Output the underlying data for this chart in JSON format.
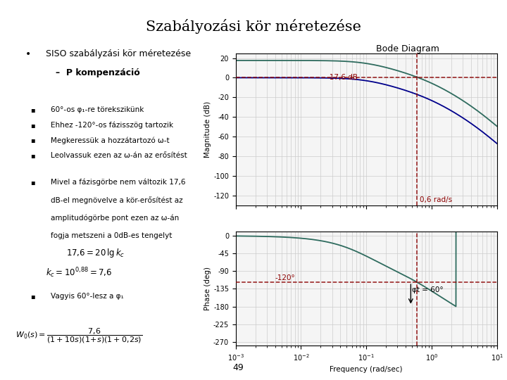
{
  "title": "Szabályozási kör méretezése",
  "bullet1": "SISO szabályzási kör méretezése",
  "dash1": "–  P kompenzáció",
  "sub_bullets": [
    "60°-os φ₁-re törekszikünk",
    "Ehhez -120°-os fázisszög tartozik",
    "Megkeressük a hozzátartozó ω-t",
    "Leolvassuk ezen az ω-án az erősítést"
  ],
  "para_bullet": "Mivel a fázisgörbe nem változik 17,6 dB-el megnövelve a kör-erősítést az amplitudógörbe pont ezen az ω-án fogja metszeni a 0dB-es tengelyt",
  "bullet_last": "Vagyis 60°-lesz a φ₁",
  "page_num": "49",
  "bode_title": "Bode Diagram",
  "freq_label": "Frequency (rad/sec)",
  "mag_label": "Magnitude (dB)",
  "phase_label": "Phase (deg)",
  "mag_yticks": [
    20,
    0,
    -20,
    -40,
    -60,
    -80,
    -100,
    -120
  ],
  "phase_yticks": [
    0,
    -45,
    -90,
    -135,
    -180,
    -225,
    -270
  ],
  "annotation_mag": "-17,6 dB",
  "annotation_freq": "0,6 rad/s",
  "annotation_phase": "-120°",
  "annotation_phi": "φt = 60°",
  "dashed_color": "#8B0000",
  "curve_color_green": "#2E6B5E",
  "curve_color_blue": "#00008B",
  "background_color": "#FFFFFF",
  "omega_c": 0.6,
  "mag_ylim": [
    -130,
    25
  ],
  "phase_ylim": [
    -280,
    10
  ]
}
